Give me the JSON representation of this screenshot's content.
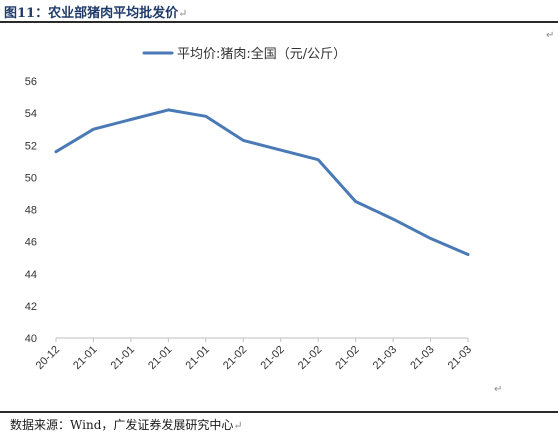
{
  "figure": {
    "title": "图11：农业部猪肉平均批发价",
    "source": "数据来源：Wind，广发证券发展研究中心",
    "para_mark": "↵"
  },
  "chart_data": {
    "type": "line",
    "title": "",
    "xlabel": "",
    "ylabel": "",
    "ylim": [
      40,
      56
    ],
    "y_ticks": [
      40,
      42,
      44,
      46,
      48,
      50,
      52,
      54,
      56
    ],
    "grid": false,
    "legend_position": "top",
    "x_tick_labels": [
      "20-12",
      "21-01",
      "21-01",
      "21-01",
      "21-01",
      "21-02",
      "21-02",
      "21-02",
      "21-02",
      "21-03",
      "21-03",
      "21-03"
    ],
    "series": [
      {
        "name": "平均价:猪肉:全国（元/公斤）",
        "color": "#4a7ab5",
        "values": [
          51.6,
          53.0,
          53.6,
          54.2,
          53.8,
          52.3,
          51.7,
          51.1,
          48.5,
          47.4,
          46.2,
          45.2
        ]
      }
    ]
  }
}
